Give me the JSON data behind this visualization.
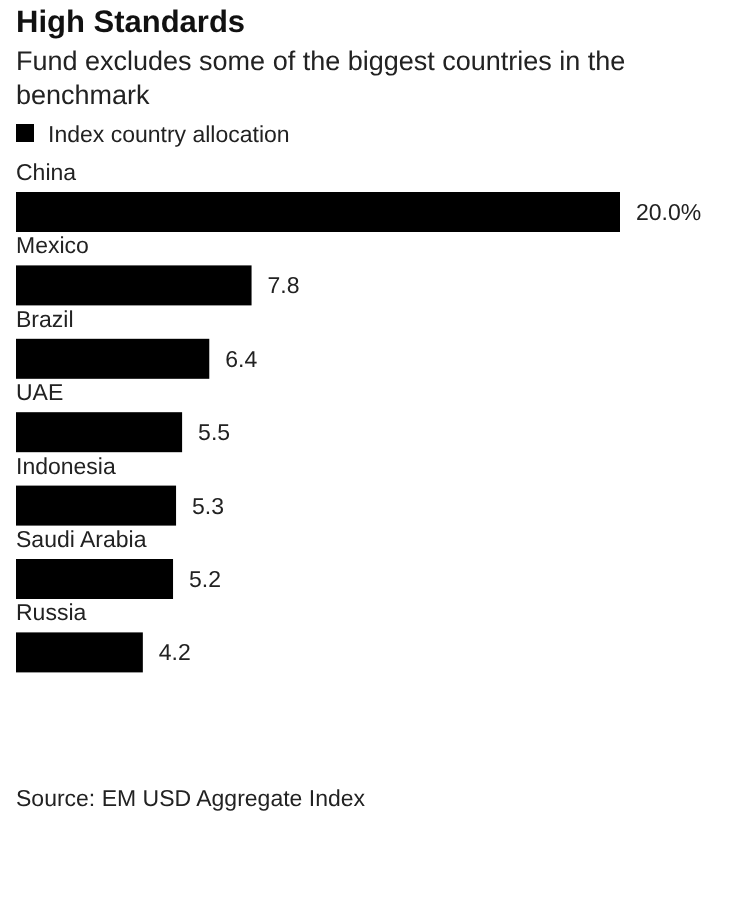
{
  "chart_data": {
    "type": "bar",
    "orientation": "horizontal",
    "title": "High Standards",
    "subtitle": "Fund excludes some of the biggest countries in the benchmark",
    "categories": [
      "China",
      "Mexico",
      "Brazil",
      "UAE",
      "Indonesia",
      "Saudi Arabia",
      "Russia"
    ],
    "series": [
      {
        "name": "Index country allocation",
        "color": "#000000",
        "values": [
          20.0,
          7.8,
          6.4,
          5.5,
          5.3,
          5.2,
          4.2
        ],
        "value_labels": [
          "20.0%",
          "7.8",
          "6.4",
          "5.5",
          "5.3",
          "5.2",
          "4.2"
        ]
      }
    ],
    "legend": "top left",
    "annotations": [
      "Source: EM USD Aggregate Index"
    ]
  }
}
